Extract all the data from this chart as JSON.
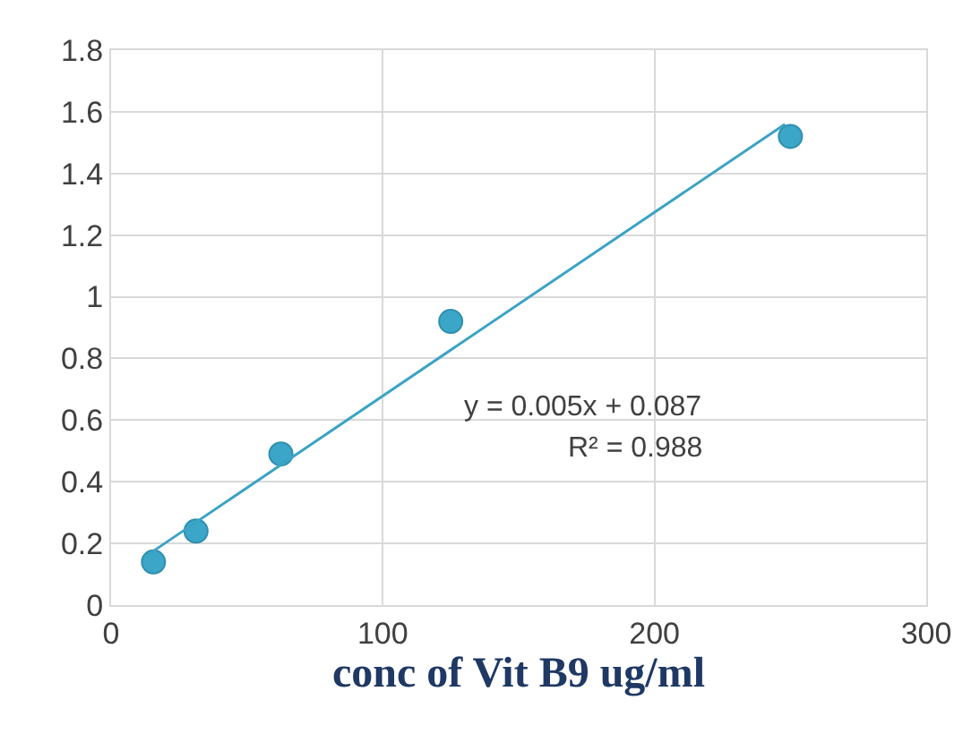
{
  "chart_data": {
    "type": "scatter",
    "xlabel": "conc of Vit B9 ug/ml",
    "series": [
      {
        "color": "#3ba6c8",
        "x": [
          15.6,
          31.25,
          62.5,
          125,
          250
        ],
        "values": [
          0.14,
          0.24,
          0.49,
          0.92,
          1.52
        ],
        "marker": "circle"
      },
      {
        "type": "line",
        "color": "#3ba3c4",
        "x": [
          13,
          248
        ],
        "values": [
          0.16,
          1.56
        ],
        "marker": "none"
      }
    ],
    "annotations": [
      "y = 0.005x + 0.087",
      "R² = 0.988"
    ],
    "xlim": [
      0,
      300
    ],
    "xticks": [
      0,
      100,
      200,
      300
    ],
    "ylim": [
      0,
      1.8
    ],
    "yticks": [
      0,
      0.2,
      0.4,
      0.6,
      0.8,
      1,
      1.2,
      1.4,
      1.6,
      1.8
    ],
    "grid": true
  }
}
